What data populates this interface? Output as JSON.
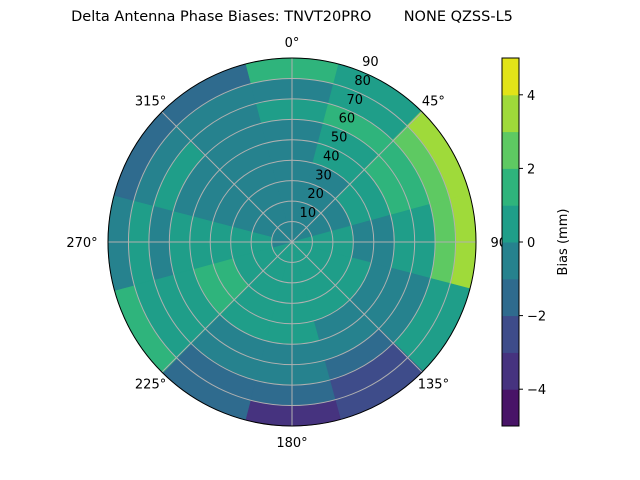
{
  "chart_data": {
    "type": "heatmap",
    "subtype": "polar-filled-contour",
    "title": "Delta Antenna Phase Biases: TNVT20PRO       NONE QZSS-L5",
    "angular_ticks": [
      "0°",
      "45°",
      "90°",
      "135°",
      "180°",
      "225°",
      "270°",
      "315°"
    ],
    "angular_direction": "clockwise, 0° at top",
    "radial_ticks": [
      10,
      20,
      30,
      40,
      50,
      60,
      70,
      80,
      90
    ],
    "radial_range": [
      0,
      90
    ],
    "grid": true,
    "azimuths_deg": [
      0,
      30,
      60,
      90,
      120,
      150,
      180,
      210,
      240,
      270,
      300,
      330
    ],
    "radii": [
      5,
      15,
      25,
      35,
      45,
      55,
      65,
      75,
      85
    ],
    "values": [
      [
        -0.5,
        -0.5,
        -0.5,
        -0.5,
        -0.5,
        -0.5,
        0.5,
        -0.5,
        1.5
      ],
      [
        -0.5,
        -0.5,
        -0.5,
        -0.5,
        0.5,
        0.5,
        1.5,
        0.5,
        0.5
      ],
      [
        -0.5,
        -0.5,
        -0.5,
        0.5,
        0.5,
        1.5,
        1.5,
        2.5,
        3.5
      ],
      [
        0.5,
        0.5,
        0.5,
        -0.5,
        -0.5,
        0.5,
        0.5,
        2.5,
        3.5
      ],
      [
        0.5,
        0.5,
        0.5,
        0.5,
        -0.5,
        -0.5,
        -0.5,
        0.5,
        0.5
      ],
      [
        0.5,
        0.5,
        0.5,
        0.5,
        -0.5,
        -0.5,
        -1.5,
        -2.5,
        -2.5
      ],
      [
        0.5,
        0.5,
        0.5,
        0.5,
        0.5,
        -0.5,
        -0.5,
        -1.5,
        -3.5
      ],
      [
        0.5,
        0.5,
        0.5,
        0.5,
        0.5,
        -0.5,
        -0.5,
        -1.5,
        -1.5
      ],
      [
        0.5,
        0.5,
        0.5,
        1.5,
        1.5,
        0.5,
        0.5,
        0.5,
        1.5
      ],
      [
        -0.5,
        0.5,
        0.5,
        0.5,
        0.5,
        0.5,
        -0.5,
        0.5,
        -0.5
      ],
      [
        -0.5,
        -0.5,
        -0.5,
        -0.5,
        -0.5,
        -0.5,
        0.5,
        -0.5,
        -1.5
      ],
      [
        -0.5,
        -0.5,
        -0.5,
        -0.5,
        -0.5,
        -0.5,
        -0.5,
        -0.5,
        -1.5
      ]
    ],
    "colorbar": {
      "label": "Bias (mm)",
      "levels": [
        -5,
        -4,
        -3,
        -2,
        -1,
        0,
        1,
        2,
        3,
        4,
        5
      ],
      "ticks": [
        "−4",
        "−2",
        "0",
        "2",
        "4"
      ],
      "tick_values": [
        -4,
        -2,
        0,
        2,
        4
      ],
      "colors": [
        "#481467",
        "#46337f",
        "#3e4c8a",
        "#2f6b8e",
        "#26828e",
        "#1f9e89",
        "#2fb47c",
        "#5ec962",
        "#9fda3a",
        "#e2e418"
      ],
      "colormap": "viridis"
    }
  }
}
